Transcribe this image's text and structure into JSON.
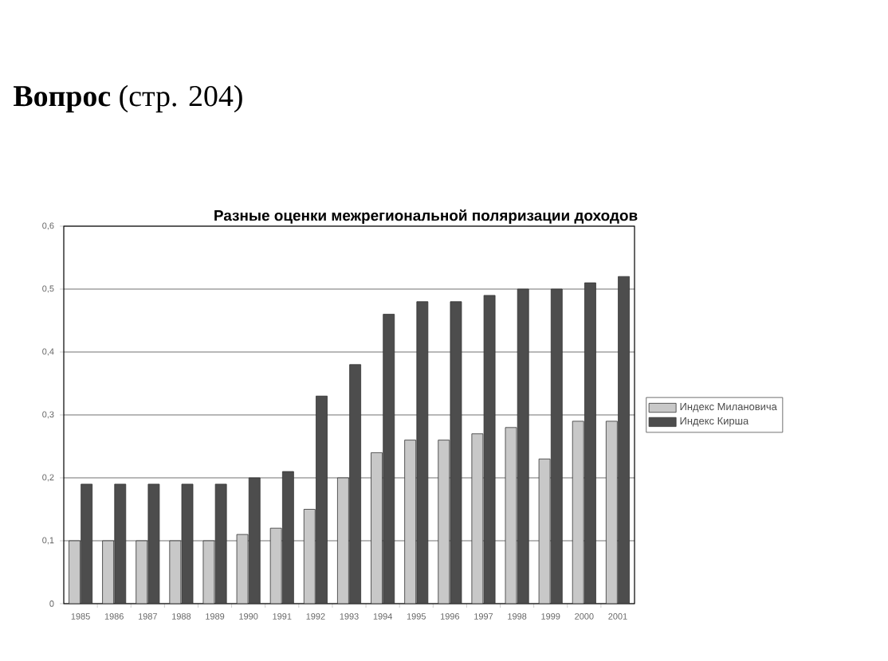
{
  "chart_data": {
    "type": "bar",
    "title": "Разные оценки межрегиональной поляризации доходов",
    "annotations": [
      "**Вопрос** (стр. 204)"
    ],
    "categories": [
      "1985",
      "1986",
      "1987",
      "1988",
      "1989",
      "1990",
      "1991",
      "1992",
      "1993",
      "1994",
      "1995",
      "1996",
      "1997",
      "1998",
      "1999",
      "2000",
      "2001"
    ],
    "series": [
      {
        "name": "Индекс Милановича",
        "color": "#c8c8c8",
        "values": [
          0.1,
          0.1,
          0.1,
          0.1,
          0.1,
          0.11,
          0.12,
          0.15,
          0.2,
          0.24,
          0.26,
          0.26,
          0.27,
          0.28,
          0.23,
          0.29,
          0.29
        ]
      },
      {
        "name": "Индекс Кирша",
        "color": "#4d4d4d",
        "values": [
          0.19,
          0.19,
          0.19,
          0.19,
          0.19,
          0.2,
          0.21,
          0.33,
          0.38,
          0.46,
          0.48,
          0.48,
          0.49,
          0.5,
          0.5,
          0.51,
          0.52
        ]
      }
    ],
    "ylim": [
      0,
      0.6
    ],
    "yticks": [
      0,
      {
        "value": 0.1,
        "label": "0,1"
      },
      {
        "value": 0.2,
        "label": "0,2"
      },
      {
        "value": 0.3,
        "label": "0,3"
      },
      {
        "value": 0.4,
        "label": "0,4"
      },
      {
        "value": 0.5,
        "label": "0,5"
      },
      {
        "value": 0.6,
        "label": "0,6"
      }
    ],
    "grid": "y",
    "legend": "right"
  }
}
